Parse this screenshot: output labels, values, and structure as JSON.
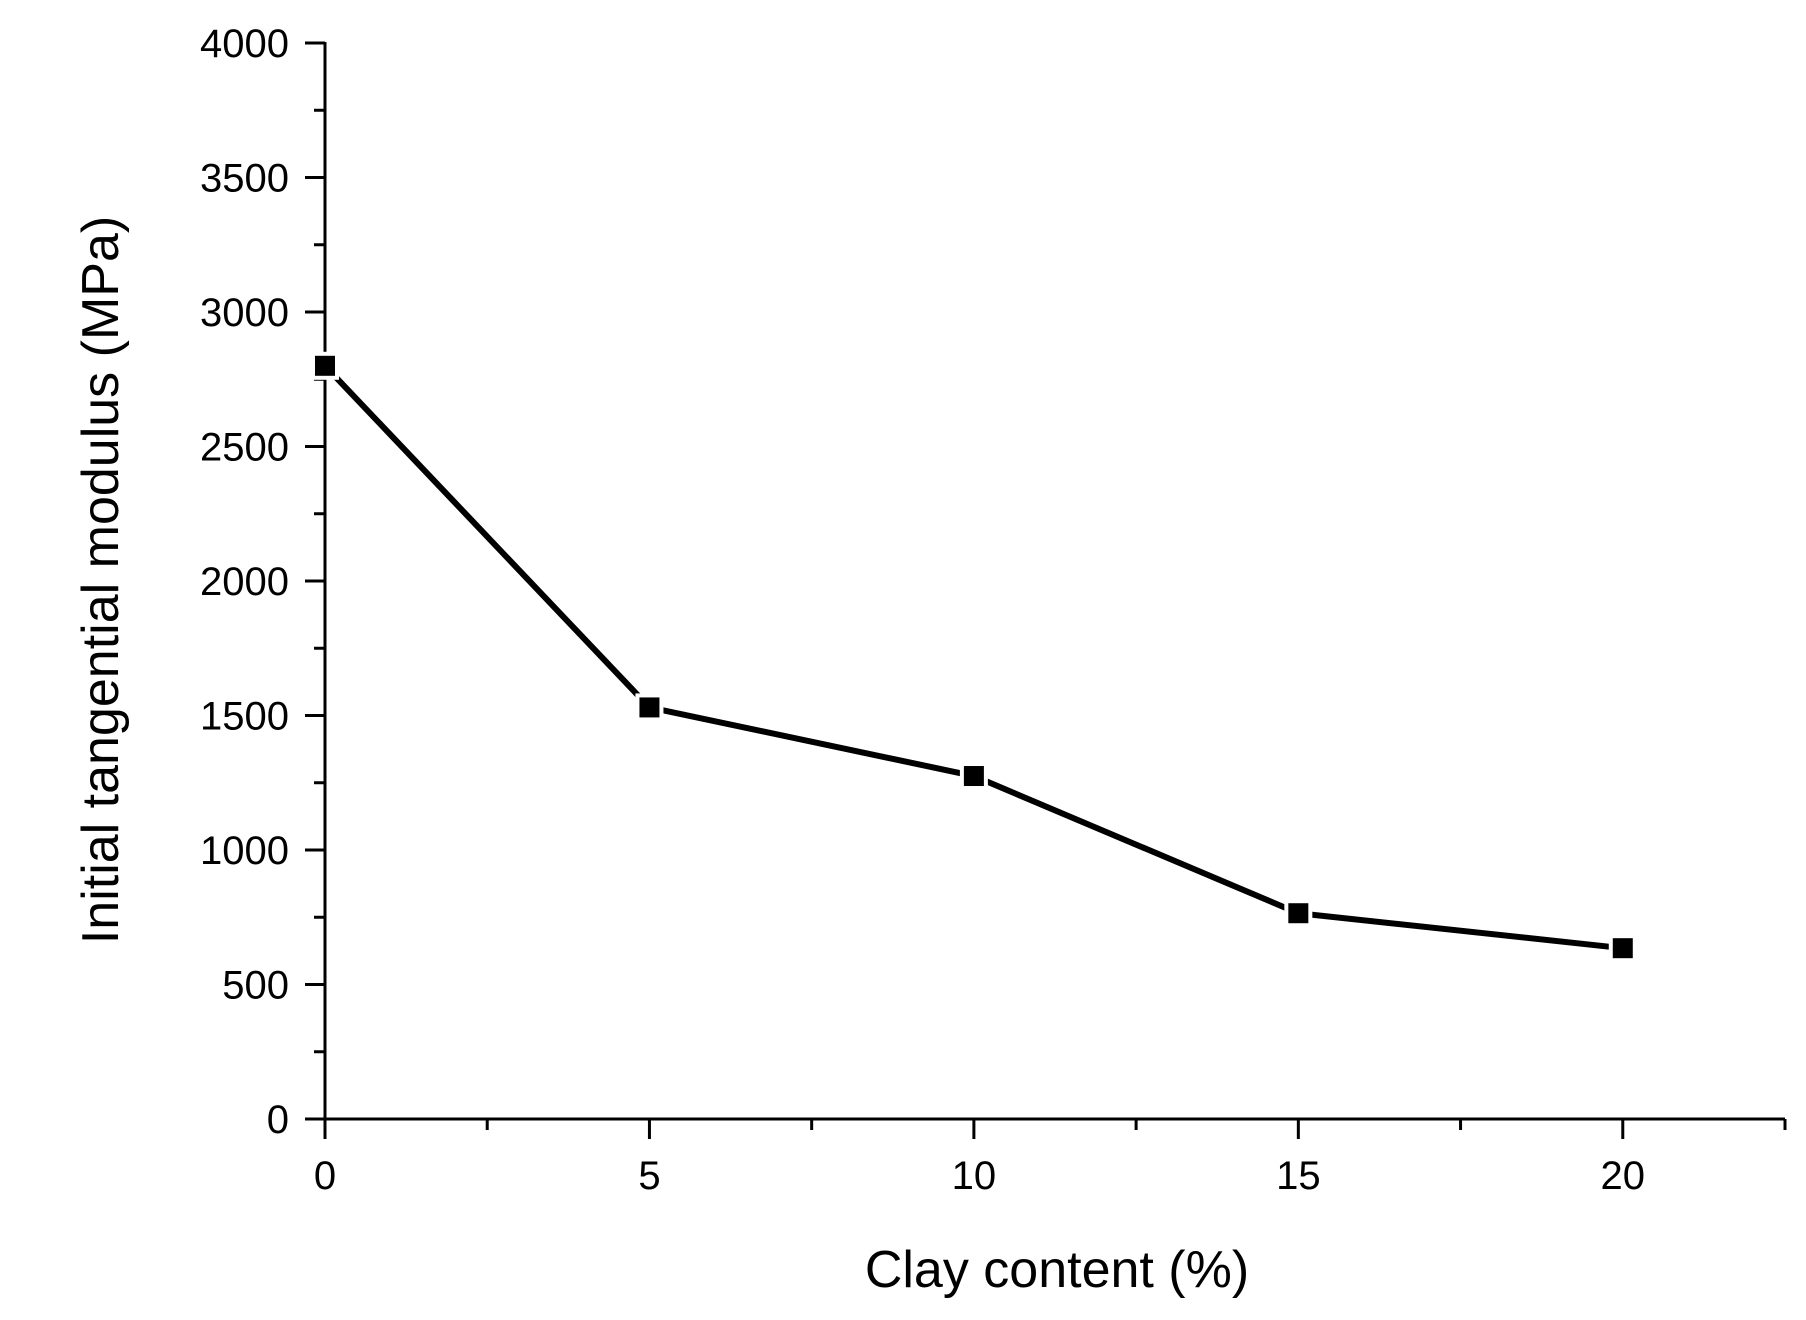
{
  "chart_data": {
    "type": "line",
    "title": "",
    "xlabel": "Clay content (%)",
    "ylabel": "Initial tangential modulus (MPa)",
    "xlim": [
      0,
      22.5
    ],
    "ylim": [
      0,
      4000
    ],
    "x_ticks": [
      0,
      5,
      10,
      15,
      20
    ],
    "x_tick_labels": [
      "0",
      "5",
      "10",
      "15",
      "20"
    ],
    "x_minor_ticks": [
      2.5,
      7.5,
      12.5,
      17.5,
      22.5
    ],
    "y_ticks": [
      0,
      500,
      1000,
      1500,
      2000,
      2500,
      3000,
      3500,
      4000
    ],
    "y_tick_labels": [
      "0",
      "500",
      "1000",
      "1500",
      "2000",
      "2500",
      "3000",
      "3500",
      "4000"
    ],
    "y_minor_ticks": [
      250,
      750,
      1250,
      1750,
      2250,
      2750,
      3250,
      3750
    ],
    "grid": false,
    "marker": "square",
    "color": "#000000",
    "series": [
      {
        "x": [
          0,
          5,
          10,
          15,
          20
        ],
        "values": [
          2800,
          1530,
          1275,
          765,
          635
        ]
      }
    ]
  }
}
